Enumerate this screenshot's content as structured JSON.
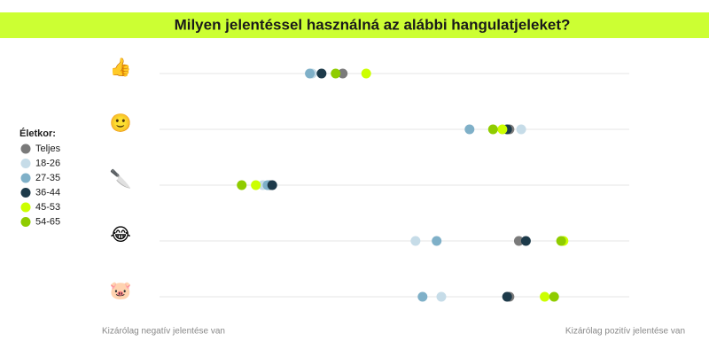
{
  "chart_data": {
    "type": "dot",
    "title": "Milyen jelentéssel használná az alábbi hangulatjeleket?",
    "legend_title": "Életkor:",
    "categories": [
      "👍",
      "🙂",
      "🔪",
      "😂",
      "🐷"
    ],
    "xlim": [
      -100,
      100
    ],
    "xlabel_min": "Kizárólag negatív jelentése van",
    "xlabel_max": "Kizárólag pozitív jelentése van",
    "legend": "left",
    "series": [
      {
        "name": "Teljes",
        "color": "#7a7a7a",
        "values": [
          -22,
          49,
          -53,
          53,
          49
        ]
      },
      {
        "name": "18-26",
        "color": "#c6dce8",
        "values": [
          -35,
          54,
          -56,
          9,
          20
        ]
      },
      {
        "name": "27-35",
        "color": "#7fb0c8",
        "values": [
          -36,
          32,
          -54,
          18,
          12
        ]
      },
      {
        "name": "36-44",
        "color": "#1d3a4a",
        "values": [
          -31,
          48,
          -52,
          56,
          48
        ]
      },
      {
        "name": "45-53",
        "color": "#ccff00",
        "values": [
          -12,
          46,
          -59,
          72,
          64
        ]
      },
      {
        "name": "54-65",
        "color": "#8fcc00",
        "values": [
          -25,
          42,
          -65,
          71,
          68
        ]
      }
    ]
  }
}
